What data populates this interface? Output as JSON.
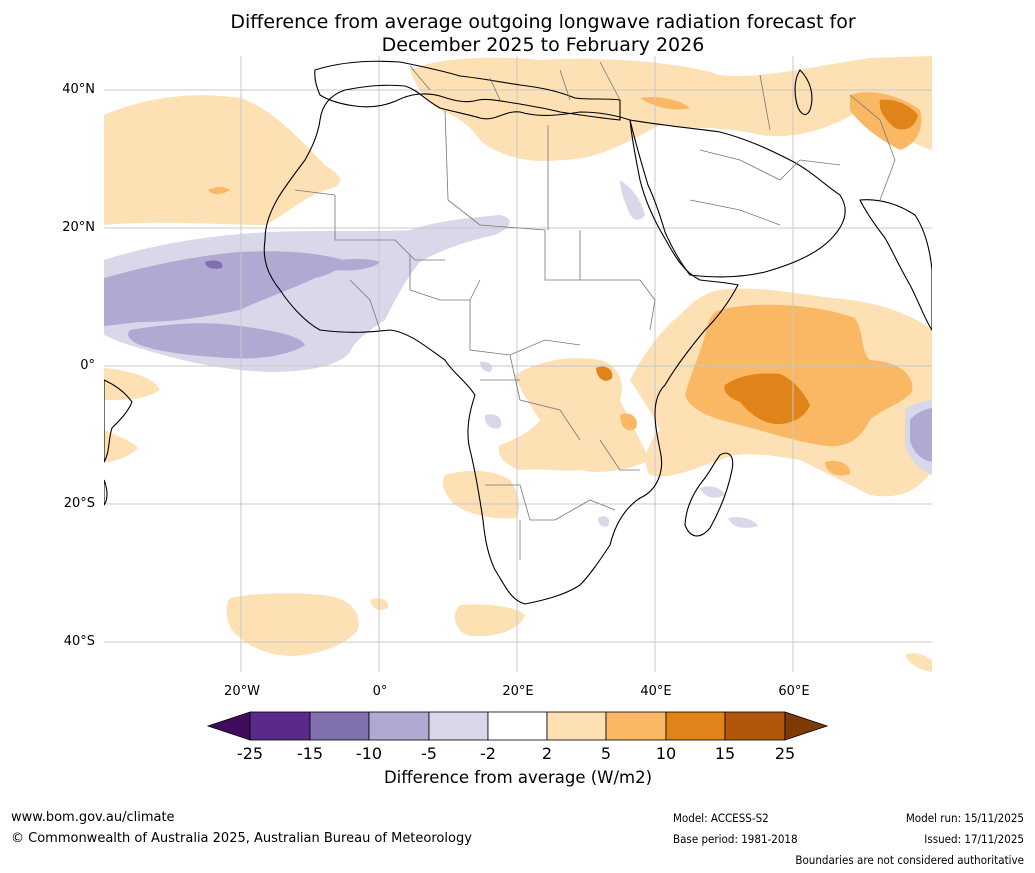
{
  "title": {
    "line1": "Difference from average outgoing longwave radiation forecast for",
    "line2": "December 2025 to February 2026"
  },
  "axes": {
    "lat_labels": [
      "40°N",
      "20°N",
      "0°",
      "20°S",
      "40°S"
    ],
    "lon_labels": [
      "20°W",
      "0°",
      "20°E",
      "40°E",
      "60°E"
    ]
  },
  "colorbar": {
    "ticks": [
      "-25",
      "-15",
      "-10",
      "-5",
      "-2",
      "2",
      "5",
      "10",
      "15",
      "25"
    ],
    "colors": [
      "#3f0d5c",
      "#5a2a8a",
      "#8170ae",
      "#b0a9d2",
      "#d8d8ea",
      "#ffffff",
      "#fde0b4",
      "#fab865",
      "#e08318",
      "#b25709",
      "#7e3a07"
    ],
    "label": "Difference from average (W/m2)"
  },
  "footer": {
    "website": "www.bom.gov.au/climate",
    "copyright": "© Commonwealth of Australia 2025, Australian Bureau of Meteorology",
    "model": "Model: ACCESS-S2",
    "base_period": "Base period: 1981-2018",
    "model_run": "Model run: 15/11/2025",
    "issued": "Issued: 17/11/2025",
    "disclaimer": "Boundaries are not considered authoritative"
  }
}
